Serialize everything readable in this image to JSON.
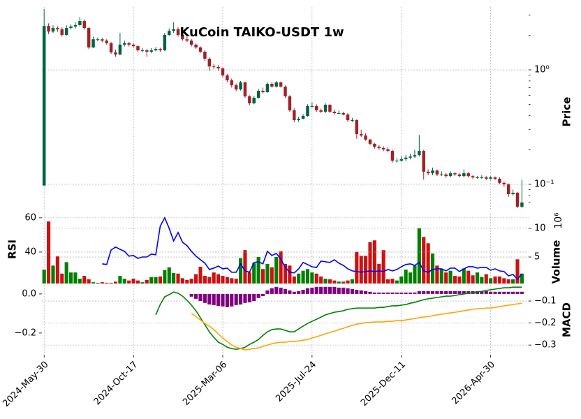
{
  "chart_data": [
    {
      "type": "candlestick",
      "title": "KuCoin TAIKO-USDT 1w",
      "ylabel": "Price",
      "yscale": "log",
      "grid": true,
      "xlim": [
        -0.5,
        108.5
      ],
      "xticks": [
        {
          "value": 0,
          "label": "2024-May-30"
        },
        {
          "value": 20,
          "label": "2024-Oct-17"
        },
        {
          "value": 40,
          "label": "2025-Mar-06"
        },
        {
          "value": 60,
          "label": "2025-Jul-24"
        },
        {
          "value": 80,
          "label": "2025-Dec-11"
        },
        {
          "value": 100,
          "label": "2026-Apr-30"
        }
      ],
      "ylim": [
        0.0603,
        3.54
      ],
      "yticks": [
        {
          "value": 1,
          "label": "10⁰"
        },
        {
          "value": 0.1,
          "label": "10⁻¹"
        }
      ],
      "yminorticks": [
        0.07,
        0.08,
        0.09,
        0.2,
        0.3,
        0.4,
        0.5,
        0.6,
        0.7,
        0.8,
        0.9,
        2,
        3
      ],
      "up_color": "#006340",
      "down_color": "#a02128",
      "open": [
        0.0977,
        2.42,
        2.16,
        2.32,
        2.26,
        2.02,
        2.32,
        2.39,
        2.46,
        2.67,
        2.32,
        1.57,
        1.85,
        1.85,
        1.8,
        1.71,
        1.42,
        1.36,
        1.66,
        1.71,
        1.66,
        1.61,
        1.48,
        1.48,
        1.44,
        1.48,
        1.52,
        1.48,
        2.02,
        2.19,
        2.26,
        2.02,
        1.85,
        1.8,
        1.66,
        1.57,
        1.44,
        1.25,
        1.07,
        1.06,
        1.03,
        0.894,
        0.81,
        0.734,
        0.675,
        0.777,
        0.587,
        0.51,
        0.57,
        0.656,
        0.638,
        0.755,
        0.714,
        0.777,
        0.714,
        0.587,
        0.443,
        0.364,
        0.374,
        0.396,
        0.482,
        0.482,
        0.443,
        0.431,
        0.496,
        0.431,
        0.419,
        0.419,
        0.407,
        0.364,
        0.364,
        0.275,
        0.267,
        0.246,
        0.226,
        0.213,
        0.208,
        0.202,
        0.196,
        0.161,
        0.161,
        0.166,
        0.171,
        0.175,
        0.18,
        0.196,
        0.129,
        0.125,
        0.132,
        0.122,
        0.122,
        0.118,
        0.125,
        0.122,
        0.118,
        0.125,
        0.118,
        0.115,
        0.115,
        0.115,
        0.112,
        0.115,
        0.112,
        0.103,
        0.1,
        0.0822,
        0.0845,
        0.0638
      ],
      "high": [
        3.4,
        2.55,
        2.45,
        2.4,
        2.35,
        2.45,
        2.5,
        2.6,
        2.9,
        2.75,
        2.35,
        1.95,
        1.92,
        1.9,
        1.85,
        1.75,
        1.5,
        2.1,
        1.8,
        1.75,
        1.7,
        1.64,
        1.55,
        1.52,
        1.55,
        1.58,
        1.56,
        2.1,
        2.3,
        2.6,
        2.35,
        2.08,
        1.95,
        1.85,
        1.7,
        1.6,
        1.48,
        1.28,
        1.12,
        1.1,
        1.05,
        0.92,
        0.84,
        0.76,
        0.8,
        0.79,
        0.6,
        0.59,
        0.68,
        0.7,
        0.78,
        0.78,
        0.8,
        0.79,
        0.73,
        0.6,
        0.46,
        0.39,
        0.41,
        0.5,
        0.52,
        0.5,
        0.46,
        0.51,
        0.5,
        0.45,
        0.44,
        0.43,
        0.42,
        0.38,
        0.37,
        0.3,
        0.28,
        0.25,
        0.23,
        0.22,
        0.215,
        0.21,
        0.2,
        0.17,
        0.175,
        0.18,
        0.185,
        0.2,
        0.27,
        0.2,
        0.135,
        0.14,
        0.135,
        0.13,
        0.126,
        0.13,
        0.128,
        0.125,
        0.135,
        0.128,
        0.12,
        0.118,
        0.12,
        0.118,
        0.118,
        0.117,
        0.115,
        0.106,
        0.102,
        0.09,
        0.086,
        0.11
      ],
      "low": [
        0.0977,
        2.05,
        2.1,
        2.15,
        1.95,
        1.98,
        2.25,
        2.3,
        2.4,
        2.25,
        1.52,
        1.55,
        1.78,
        1.74,
        1.66,
        1.38,
        1.3,
        1.34,
        1.6,
        1.6,
        1.56,
        1.44,
        1.42,
        1.3,
        1.4,
        1.45,
        1.44,
        1.46,
        1.98,
        2.1,
        1.95,
        1.8,
        1.75,
        1.6,
        1.52,
        1.4,
        1.2,
        0.98,
        1.02,
        0.98,
        0.86,
        0.78,
        0.7,
        0.65,
        0.66,
        0.57,
        0.49,
        0.5,
        0.56,
        0.62,
        0.63,
        0.7,
        0.7,
        0.7,
        0.57,
        0.43,
        0.35,
        0.35,
        0.37,
        0.39,
        0.47,
        0.43,
        0.42,
        0.42,
        0.42,
        0.41,
        0.41,
        0.4,
        0.35,
        0.35,
        0.25,
        0.26,
        0.24,
        0.22,
        0.205,
        0.2,
        0.195,
        0.19,
        0.155,
        0.155,
        0.158,
        0.16,
        0.165,
        0.17,
        0.175,
        0.11,
        0.12,
        0.12,
        0.118,
        0.118,
        0.114,
        0.115,
        0.118,
        0.115,
        0.115,
        0.115,
        0.112,
        0.112,
        0.112,
        0.109,
        0.11,
        0.109,
        0.1,
        0.095,
        0.078,
        0.08,
        0.062,
        0.062
      ],
      "close": [
        2.42,
        2.16,
        2.32,
        2.26,
        2.02,
        2.32,
        2.39,
        2.46,
        2.67,
        2.32,
        1.57,
        1.85,
        1.85,
        1.8,
        1.71,
        1.42,
        1.36,
        1.66,
        1.71,
        1.66,
        1.61,
        1.48,
        1.48,
        1.44,
        1.48,
        1.52,
        1.48,
        2.02,
        2.19,
        2.26,
        2.02,
        1.85,
        1.8,
        1.66,
        1.57,
        1.44,
        1.25,
        1.07,
        1.06,
        1.03,
        0.894,
        0.81,
        0.734,
        0.675,
        0.777,
        0.587,
        0.51,
        0.57,
        0.656,
        0.638,
        0.755,
        0.714,
        0.777,
        0.714,
        0.587,
        0.443,
        0.364,
        0.374,
        0.396,
        0.482,
        0.482,
        0.443,
        0.431,
        0.496,
        0.431,
        0.419,
        0.419,
        0.407,
        0.364,
        0.364,
        0.275,
        0.267,
        0.246,
        0.226,
        0.213,
        0.208,
        0.202,
        0.196,
        0.161,
        0.161,
        0.166,
        0.171,
        0.175,
        0.18,
        0.196,
        0.129,
        0.125,
        0.132,
        0.122,
        0.122,
        0.118,
        0.125,
        0.122,
        0.118,
        0.125,
        0.118,
        0.115,
        0.115,
        0.115,
        0.112,
        0.115,
        0.112,
        0.103,
        0.1,
        0.0822,
        0.0845,
        0.0638,
        0.0694
      ]
    },
    {
      "type": "bar",
      "ylabel": "Volume",
      "offset_label": "10⁶",
      "grid": true,
      "ylim": [
        0.37,
        12.56
      ],
      "yticks": [
        5,
        10
      ],
      "up_color": "#008000",
      "down_color": "#cc1111",
      "values": [
        2.8,
        11.2,
        3.5,
        5.1,
        2.1,
        4.1,
        2.3,
        2.3,
        1.2,
        1.7,
        1.1,
        0.6,
        0.5,
        0.6,
        0.5,
        0.5,
        0.7,
        1.7,
        1.2,
        0.9,
        1.2,
        0.9,
        0.6,
        1.0,
        1.5,
        1.5,
        1.6,
        2.7,
        3.2,
        2.2,
        2.1,
        1.3,
        1.0,
        1.2,
        2.0,
        3.3,
        1.7,
        1.5,
        2.3,
        2.0,
        1.7,
        1.5,
        1.3,
        1.2,
        4.8,
        6.2,
        2.3,
        3.9,
        5.0,
        2.9,
        3.8,
        3.2,
        5.0,
        6.0,
        3.8,
        3.5,
        1.6,
        2.1,
        2.6,
        2.9,
        2.3,
        2.1,
        1.6,
        1.2,
        1.1,
        0.9,
        0.7,
        0.7,
        0.9,
        1.1,
        5.9,
        5.2,
        5.2,
        7.6,
        7.9,
        3.8,
        6.2,
        1.1,
        1.2,
        0.9,
        1.6,
        2.8,
        2.3,
        3.5,
        10.0,
        8.5,
        7.4,
        5.6,
        3.5,
        2.9,
        2.3,
        2.6,
        1.7,
        1.6,
        3.0,
        2.6,
        1.8,
        2.3,
        1.5,
        2.0,
        1.3,
        1.6,
        1.6,
        1.3,
        1.1,
        1.1,
        4.6,
        2.1
      ]
    },
    {
      "type": "line",
      "ylabel": "RSI",
      "grid": true,
      "ylim": [
        21.6,
        62.4
      ],
      "yticks": [
        40,
        60
      ],
      "series": [
        {
          "color": "#0000ff",
          "values": [
            null,
            null,
            null,
            null,
            null,
            null,
            null,
            null,
            null,
            null,
            null,
            null,
            null,
            33.1,
            32.7,
            41.2,
            42.9,
            41.6,
            40.4,
            37.6,
            38.0,
            36.3,
            37.1,
            37.1,
            38.8,
            38.4,
            55.1,
            60.0,
            53.9,
            46.5,
            51.4,
            45.7,
            43.7,
            40.4,
            37.6,
            35.5,
            33.5,
            29.8,
            30.6,
            31.8,
            30.2,
            30.6,
            28.2,
            28.2,
            33.1,
            29.0,
            28.2,
            33.9,
            34.3,
            33.1,
            40.4,
            38.0,
            39.2,
            35.9,
            31.0,
            28.2,
            27.8,
            30.2,
            33.9,
            32.7,
            31.4,
            31.0,
            34.7,
            34.3,
            33.9,
            35.5,
            33.5,
            32.2,
            30.2,
            29.0,
            28.6,
            28.2,
            28.6,
            29.0,
            28.6,
            29.0,
            28.6,
            29.8,
            29.0,
            29.8,
            31.4,
            32.7,
            33.1,
            32.2,
            33.9,
            29.0,
            28.2,
            29.8,
            30.2,
            30.2,
            29.0,
            30.6,
            30.6,
            28.6,
            30.2,
            31.4,
            31.4,
            30.6,
            31.0,
            31.0,
            29.4,
            30.2,
            29.0,
            28.6,
            26.1,
            26.9,
            24.1,
            27.3
          ]
        }
      ]
    },
    {
      "type": "macd",
      "ylabel": "MACD",
      "grid": true,
      "ylim": [
        -0.311,
        0.046
      ],
      "yticks": [
        {
          "value": 0,
          "label": "0.0"
        },
        {
          "value": -0.2,
          "label": "−0.2"
        }
      ],
      "y2lim": [
        -0.344,
        -0.027
      ],
      "y2ticks": [
        {
          "value": -0.1,
          "label": "−0.1"
        },
        {
          "value": -0.2,
          "label": "−0.2"
        },
        {
          "value": -0.3,
          "label": "−0.3"
        }
      ],
      "series": [
        {
          "type": "bar",
          "color": "#800080",
          "values": [
            null,
            null,
            null,
            null,
            null,
            null,
            null,
            null,
            null,
            null,
            null,
            null,
            null,
            null,
            null,
            null,
            null,
            null,
            null,
            null,
            null,
            null,
            null,
            null,
            null,
            null,
            null,
            null,
            null,
            null,
            null,
            null,
            null,
            -0.014,
            -0.025,
            -0.036,
            -0.046,
            -0.054,
            -0.057,
            -0.061,
            -0.064,
            -0.068,
            -0.064,
            -0.057,
            -0.054,
            -0.046,
            -0.043,
            -0.036,
            -0.021,
            -0.011,
            0.018,
            0.029,
            0.036,
            0.032,
            0.025,
            0.018,
            0.011,
            0.014,
            0.021,
            0.029,
            0.032,
            0.036,
            0.036,
            0.036,
            0.036,
            0.036,
            0.032,
            0.032,
            0.029,
            0.025,
            0.021,
            0.018,
            0.014,
            0.011,
            0.007,
            0.007,
            0.007,
            0.007,
            0.007,
            0.007,
            0.007,
            0.007,
            0.007,
            0.007,
            0.014,
            0.014,
            0.014,
            0.014,
            0.014,
            0.014,
            0.014,
            0.014,
            0.014,
            0.014,
            0.014,
            0.014,
            0.014,
            0.014,
            0.014,
            0.014,
            0.011,
            0.011,
            0.011,
            0.011,
            0.011,
            0.011,
            0.011,
            0.011
          ]
        },
        {
          "color": "#008000",
          "axis": "y2",
          "values": [
            null,
            null,
            null,
            null,
            null,
            null,
            null,
            null,
            null,
            null,
            null,
            null,
            null,
            null,
            null,
            null,
            null,
            null,
            null,
            null,
            null,
            null,
            null,
            null,
            null,
            -0.163,
            -0.116,
            -0.081,
            -0.071,
            -0.059,
            -0.065,
            -0.078,
            -0.097,
            -0.119,
            -0.144,
            -0.176,
            -0.208,
            -0.24,
            -0.265,
            -0.287,
            -0.297,
            -0.31,
            -0.316,
            -0.319,
            -0.316,
            -0.31,
            -0.297,
            -0.287,
            -0.275,
            -0.256,
            -0.24,
            -0.23,
            -0.227,
            -0.227,
            -0.233,
            -0.24,
            -0.24,
            -0.227,
            -0.214,
            -0.202,
            -0.192,
            -0.183,
            -0.173,
            -0.163,
            -0.157,
            -0.151,
            -0.148,
            -0.144,
            -0.138,
            -0.135,
            -0.132,
            -0.132,
            -0.132,
            -0.132,
            -0.132,
            -0.129,
            -0.129,
            -0.125,
            -0.122,
            -0.122,
            -0.119,
            -0.116,
            -0.11,
            -0.106,
            -0.1,
            -0.094,
            -0.09,
            -0.087,
            -0.084,
            -0.081,
            -0.078,
            -0.078,
            -0.075,
            -0.071,
            -0.068,
            -0.065,
            -0.062,
            -0.059,
            -0.056,
            -0.052,
            -0.049,
            -0.046,
            -0.043,
            -0.04,
            -0.04,
            -0.037,
            -0.037,
            -0.037
          ]
        },
        {
          "color": "#ffa500",
          "axis": "y2",
          "values": [
            null,
            null,
            null,
            null,
            null,
            null,
            null,
            null,
            null,
            null,
            null,
            null,
            null,
            null,
            null,
            null,
            null,
            null,
            null,
            null,
            null,
            null,
            null,
            null,
            null,
            null,
            null,
            null,
            null,
            null,
            null,
            null,
            null,
            -0.157,
            -0.17,
            -0.186,
            -0.202,
            -0.214,
            -0.23,
            -0.249,
            -0.268,
            -0.284,
            -0.3,
            -0.31,
            -0.316,
            -0.322,
            -0.319,
            -0.316,
            -0.313,
            -0.306,
            -0.3,
            -0.294,
            -0.29,
            -0.287,
            -0.287,
            -0.284,
            -0.284,
            -0.281,
            -0.278,
            -0.275,
            -0.268,
            -0.262,
            -0.256,
            -0.249,
            -0.243,
            -0.237,
            -0.23,
            -0.224,
            -0.217,
            -0.211,
            -0.205,
            -0.202,
            -0.198,
            -0.198,
            -0.195,
            -0.195,
            -0.195,
            -0.192,
            -0.192,
            -0.189,
            -0.189,
            -0.186,
            -0.183,
            -0.179,
            -0.176,
            -0.173,
            -0.17,
            -0.167,
            -0.163,
            -0.16,
            -0.157,
            -0.154,
            -0.151,
            -0.148,
            -0.144,
            -0.141,
            -0.138,
            -0.135,
            -0.135,
            -0.132,
            -0.132,
            -0.129,
            -0.125,
            -0.122,
            -0.119,
            -0.116,
            -0.113,
            -0.11
          ]
        }
      ]
    }
  ]
}
